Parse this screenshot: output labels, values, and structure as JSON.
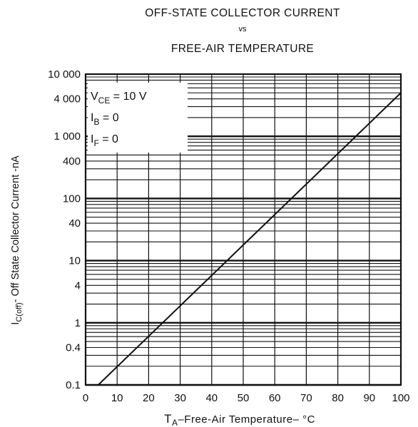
{
  "chart_data": {
    "type": "line",
    "title_line1": "OFF-STATE COLLECTOR CURRENT",
    "title_line2": "vs",
    "title_line3": "FREE-AIR TEMPERATURE",
    "xlabel": {
      "main": "T",
      "sub": "A",
      "rest": "–Free-Air Temperature– °C"
    },
    "ylabel": {
      "main": "I",
      "sub": "C(off)",
      "rest": "- Off State Collector Current -nA"
    },
    "x_ticks": [
      0,
      10,
      20,
      30,
      40,
      50,
      60,
      70,
      80,
      90,
      100
    ],
    "y_ticks": [
      {
        "value": 10000,
        "label": "10 000"
      },
      {
        "value": 4000,
        "label": "4 000"
      },
      {
        "value": 1000,
        "label": "1 000"
      },
      {
        "value": 400,
        "label": "400"
      },
      {
        "value": 100,
        "label": "100"
      },
      {
        "value": 40,
        "label": "40"
      },
      {
        "value": 10,
        "label": "10"
      },
      {
        "value": 4,
        "label": "4"
      },
      {
        "value": 1,
        "label": "1"
      },
      {
        "value": 0.4,
        "label": "0.4"
      },
      {
        "value": 0.1,
        "label": "0.1"
      }
    ],
    "xlim": [
      0,
      100
    ],
    "ylim": [
      0.1,
      10000
    ],
    "y_scale": "log",
    "grid": true,
    "conditions": [
      {
        "main": "V",
        "sub": "CE",
        "rest": " = 10 V"
      },
      {
        "main": "I",
        "sub": "B",
        "rest": " = 0"
      },
      {
        "main": "I",
        "sub": "F",
        "rest": " = 0"
      }
    ],
    "series": [
      {
        "x": [
          4,
          100
        ],
        "y": [
          0.1,
          5000
        ]
      }
    ]
  }
}
